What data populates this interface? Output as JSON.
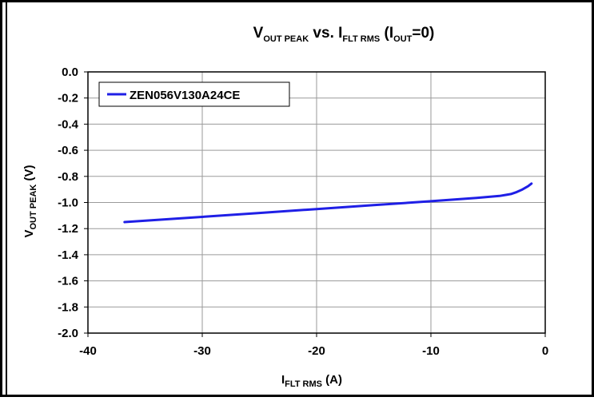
{
  "chart_data": {
    "type": "line",
    "title": {
      "main": "V",
      "main_sub": "OUT PEAK",
      "mid": " vs. I",
      "mid_sub": "FLT RMS",
      "open": " (I",
      "open_sub": "OUT",
      "close": "=0)"
    },
    "xlabel": {
      "main": "I",
      "sub": "FLT RMS",
      "unit": " (A)"
    },
    "ylabel": {
      "main": "V",
      "sub": "OUT PEAK",
      "unit": " (V)"
    },
    "xlim": [
      -40,
      0
    ],
    "ylim": [
      -2.0,
      0.0
    ],
    "xticks": [
      -40,
      -30,
      -20,
      -10,
      0
    ],
    "yticks": [
      0.0,
      -0.2,
      -0.4,
      -0.6,
      -0.8,
      -1.0,
      -1.2,
      -1.4,
      -1.6,
      -1.8,
      -2.0
    ],
    "grid": true,
    "legend_position": "top-left",
    "series": [
      {
        "name": "ZEN056V130A24CE",
        "color": "#1f1fe6",
        "x": [
          -36.8,
          -30,
          -25,
          -20,
          -15,
          -10,
          -6,
          -4,
          -3,
          -2.5,
          -2,
          -1.5,
          -1.2
        ],
        "y": [
          -1.15,
          -1.11,
          -1.08,
          -1.05,
          -1.02,
          -0.99,
          -0.965,
          -0.95,
          -0.935,
          -0.92,
          -0.9,
          -0.875,
          -0.855
        ]
      }
    ]
  }
}
